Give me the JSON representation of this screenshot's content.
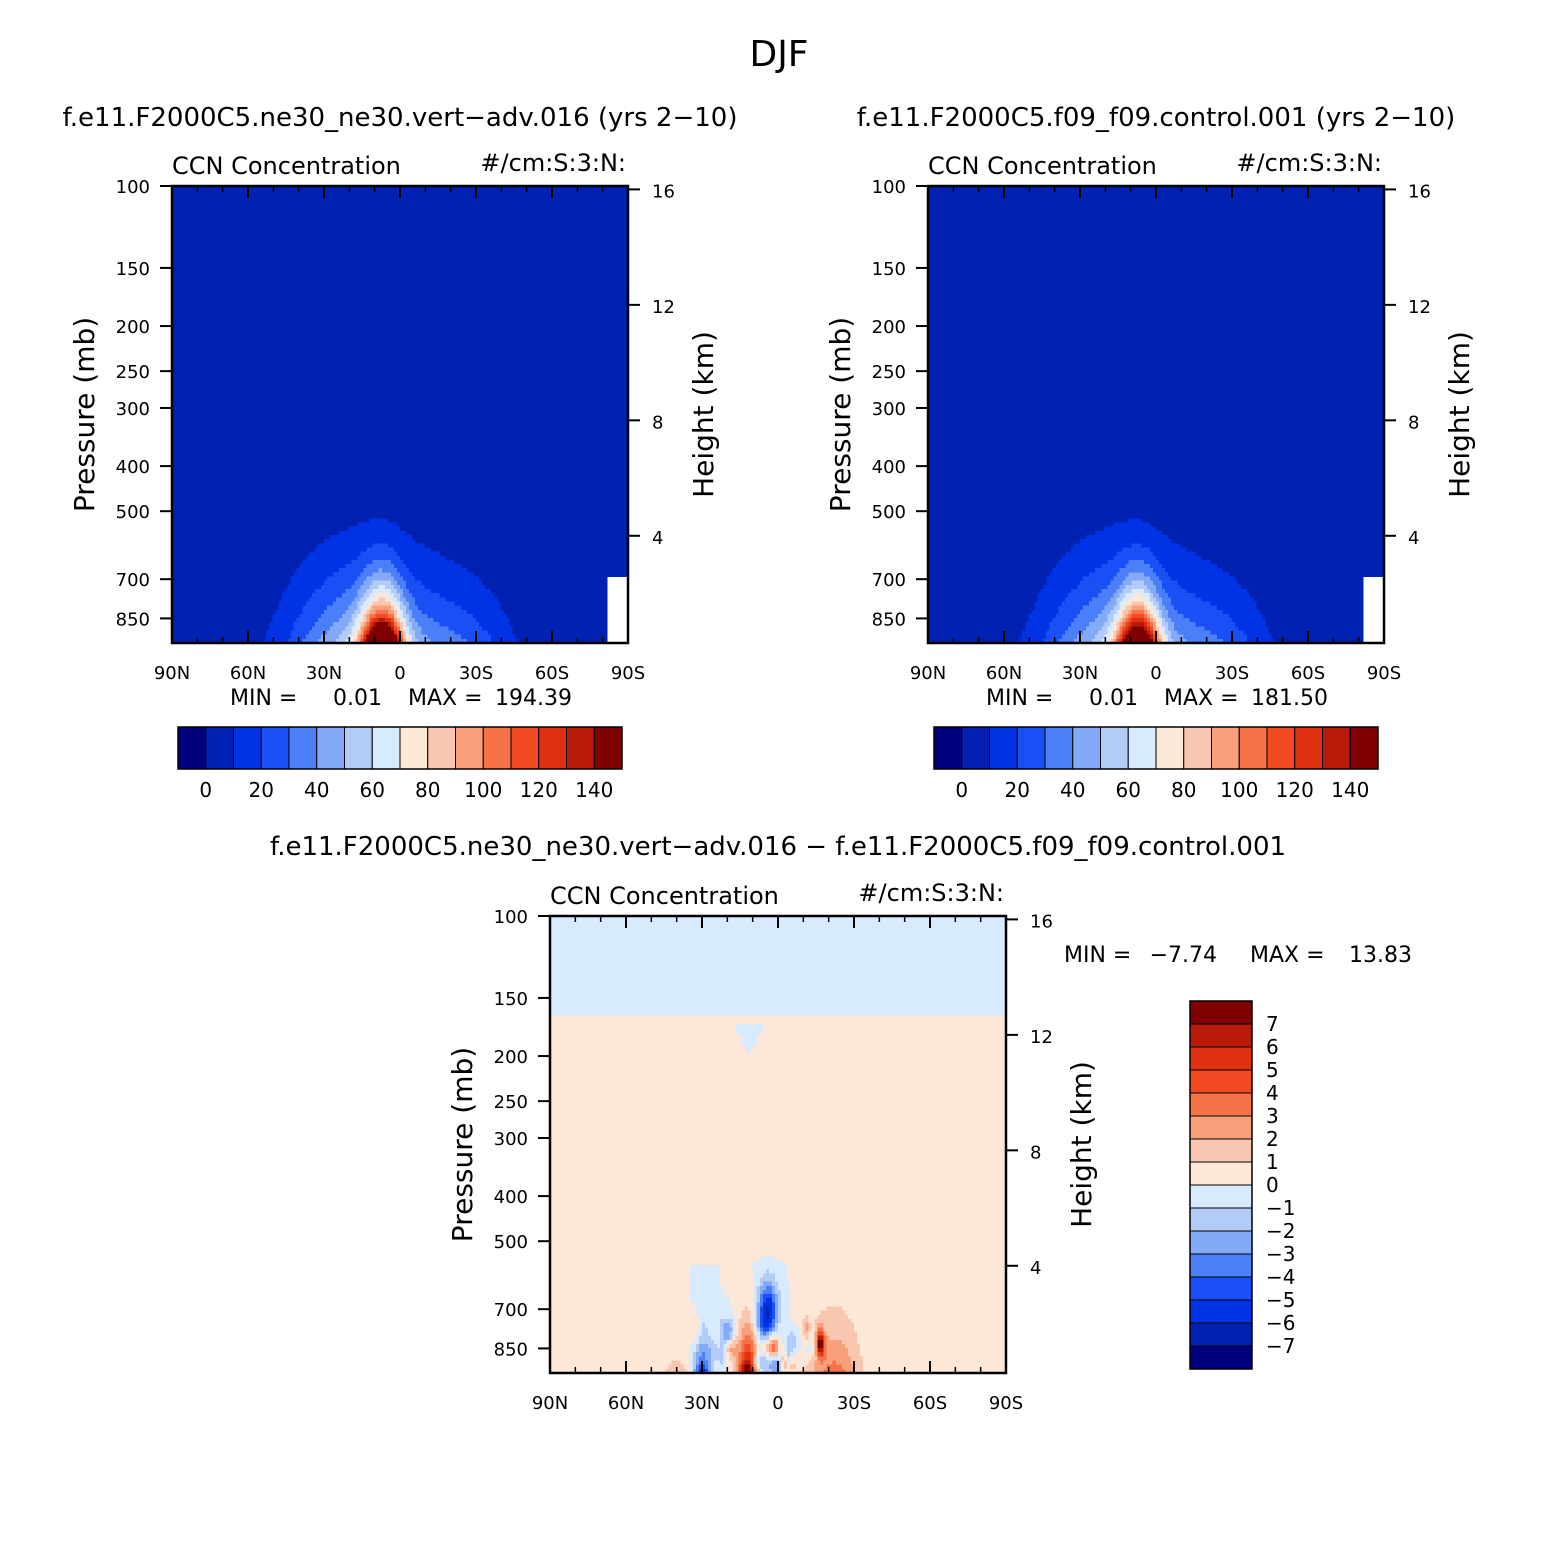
{
  "figure": {
    "title": "DJF",
    "colors": {
      "abs_palette": [
        "#00007f",
        "#0021b2",
        "#0032e6",
        "#1a4ff5",
        "#4a7ff7",
        "#82aaf6",
        "#b2ccf7",
        "#d8eafe",
        "#fde7d6",
        "#f9c7b0",
        "#f7a07a",
        "#f6734a",
        "#f24a22",
        "#e0300f",
        "#b81c08",
        "#7f0000"
      ],
      "diff_palette": [
        "#00007f",
        "#0021b2",
        "#0032e6",
        "#1a4ff5",
        "#4a7ff7",
        "#82aaf6",
        "#b2ccf7",
        "#d8eafe",
        "#fde7d6",
        "#f9c7b0",
        "#f7a07a",
        "#f6734a",
        "#f24a22",
        "#e0300f",
        "#b81c08",
        "#7f0000"
      ]
    }
  },
  "chart_data": [
    {
      "type": "heatmap",
      "case_title": "f.e11.F2000C5.ne30_ne30.vert−adv.016 (yrs 2−10)",
      "field_label": "CCN Concentration",
      "units_label": "#/cm:S:3:N:",
      "ylabel": "Pressure (mb)",
      "ylabel_right": "Height (km)",
      "x_ticks": [
        "90N",
        "60N",
        "30N",
        "0",
        "30S",
        "60S",
        "90S"
      ],
      "xlim": [
        90,
        -90
      ],
      "y_ticks": [
        100,
        150,
        200,
        250,
        300,
        400,
        500,
        700,
        850
      ],
      "ylim": [
        100,
        960
      ],
      "y_scale": "log",
      "height_ticks": [
        16,
        12,
        8,
        4
      ],
      "min_label": "MIN =",
      "min_value": "0.01",
      "max_label": "MAX =",
      "max_value": "194.39",
      "colorbar_orientation": "horizontal",
      "colorbar_labels": [
        "0",
        "20",
        "40",
        "60",
        "80",
        "100",
        "120",
        "140"
      ],
      "levels": [
        -10,
        0,
        10,
        20,
        30,
        40,
        50,
        60,
        70,
        80,
        90,
        100,
        110,
        120,
        130,
        140
      ]
    },
    {
      "type": "heatmap",
      "case_title": "f.e11.F2000C5.f09_f09.control.001 (yrs 2−10)",
      "field_label": "CCN Concentration",
      "units_label": "#/cm:S:3:N:",
      "ylabel": "Pressure (mb)",
      "ylabel_right": "Height (km)",
      "x_ticks": [
        "90N",
        "60N",
        "30N",
        "0",
        "30S",
        "60S",
        "90S"
      ],
      "xlim": [
        90,
        -90
      ],
      "y_ticks": [
        100,
        150,
        200,
        250,
        300,
        400,
        500,
        700,
        850
      ],
      "ylim": [
        100,
        960
      ],
      "y_scale": "log",
      "height_ticks": [
        16,
        12,
        8,
        4
      ],
      "min_label": "MIN =",
      "min_value": "0.01",
      "max_label": "MAX =",
      "max_value": "181.50",
      "colorbar_orientation": "horizontal",
      "colorbar_labels": [
        "0",
        "20",
        "40",
        "60",
        "80",
        "100",
        "120",
        "140"
      ],
      "levels": [
        -10,
        0,
        10,
        20,
        30,
        40,
        50,
        60,
        70,
        80,
        90,
        100,
        110,
        120,
        130,
        140
      ]
    },
    {
      "type": "heatmap",
      "case_title": "f.e11.F2000C5.ne30_ne30.vert−adv.016 − f.e11.F2000C5.f09_f09.control.001",
      "field_label": "CCN Concentration",
      "units_label": "#/cm:S:3:N:",
      "ylabel": "Pressure (mb)",
      "ylabel_right": "Height (km)",
      "x_ticks": [
        "90N",
        "60N",
        "30N",
        "0",
        "30S",
        "60S",
        "90S"
      ],
      "xlim": [
        90,
        -90
      ],
      "y_ticks": [
        100,
        150,
        200,
        250,
        300,
        400,
        500,
        700,
        850
      ],
      "ylim": [
        100,
        960
      ],
      "y_scale": "log",
      "height_ticks": [
        16,
        12,
        8,
        4
      ],
      "min_label": "MIN =",
      "min_value": "−7.74",
      "max_label": "MAX =",
      "max_value": "13.83",
      "colorbar_orientation": "vertical",
      "colorbar_labels": [
        "7",
        "6",
        "5",
        "4",
        "3",
        "2",
        "1",
        "0",
        "−1",
        "−2",
        "−3",
        "−4",
        "−5",
        "−6",
        "−7"
      ],
      "levels": [
        -8,
        -7,
        -6,
        -5,
        -4,
        -3,
        -2,
        -1,
        0,
        1,
        2,
        3,
        4,
        5,
        6,
        7
      ]
    }
  ]
}
